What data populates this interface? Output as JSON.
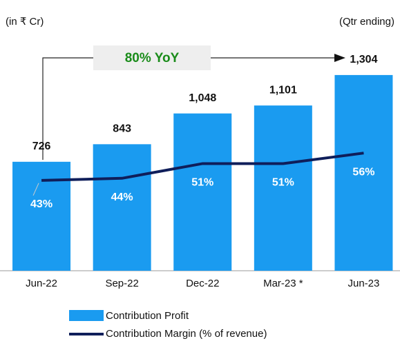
{
  "chart_data": {
    "type": "bar_line",
    "unit_note": "(in ₹ Cr)",
    "period_note": "(Qtr ending)",
    "annotation": "80% YoY",
    "categories": [
      "Jun-22",
      "Sep-22",
      "Dec-22",
      "Mar-23 *",
      "Jun-23"
    ],
    "series": [
      {
        "name": "Contribution Profit",
        "color": "#1a9bf0",
        "values": [
          726,
          843,
          1048,
          1101,
          1304
        ],
        "value_labels": [
          "726",
          "843",
          "1,048",
          "1,101",
          "1,304"
        ]
      },
      {
        "name": "Contribution Margin (% of revenue)",
        "color": "#0f1e5a",
        "axis": "y2",
        "values": [
          43,
          44,
          51,
          51,
          56
        ],
        "value_labels": [
          "43%",
          "44%",
          "51%",
          "51%",
          "56%"
        ]
      }
    ],
    "ylim": [
      0,
      1400
    ],
    "y2lim": [
      0,
      100
    ]
  }
}
